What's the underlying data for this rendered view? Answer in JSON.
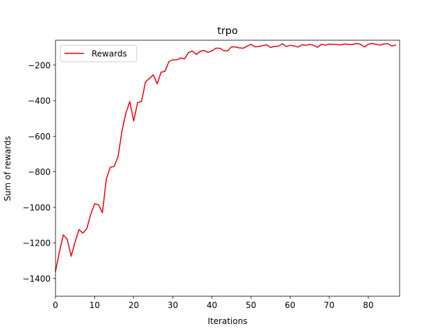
{
  "chart_data": {
    "type": "line",
    "title": "trpo",
    "xlabel": "Iterations",
    "ylabel": "Sum of rewards",
    "xlim": [
      0,
      88
    ],
    "ylim": [
      -1500,
      -60
    ],
    "xticks": [
      0,
      10,
      20,
      30,
      40,
      50,
      60,
      70,
      80
    ],
    "yticks": [
      -1400,
      -1200,
      -1000,
      -800,
      -600,
      -400,
      -200
    ],
    "xtick_labels": [
      "0",
      "10",
      "20",
      "30",
      "40",
      "50",
      "60",
      "70",
      "80"
    ],
    "ytick_labels": [
      "−1400",
      "−1200",
      "−1000",
      "−800",
      "−600",
      "−400",
      "−200"
    ],
    "grid": false,
    "legend": {
      "position": "top-left",
      "entries": [
        "Rewards"
      ]
    },
    "series": [
      {
        "name": "Rewards",
        "color": "#e8000b",
        "x": [
          0,
          1,
          2,
          3,
          4,
          5,
          6,
          7,
          8,
          9,
          10,
          11,
          12,
          13,
          14,
          15,
          16,
          17,
          18,
          19,
          20,
          21,
          22,
          23,
          24,
          25,
          26,
          27,
          28,
          29,
          30,
          31,
          32,
          33,
          34,
          35,
          36,
          37,
          38,
          39,
          40,
          41,
          42,
          43,
          44,
          45,
          46,
          47,
          48,
          49,
          50,
          51,
          52,
          53,
          54,
          55,
          56,
          57,
          58,
          59,
          60,
          61,
          62,
          63,
          64,
          65,
          66,
          67,
          68,
          69,
          70,
          71,
          72,
          73,
          74,
          75,
          76,
          77,
          78,
          79,
          80,
          81,
          82,
          83,
          84,
          85,
          86,
          87
        ],
        "values": [
          -1360,
          -1250,
          -1155,
          -1180,
          -1275,
          -1195,
          -1125,
          -1145,
          -1120,
          -1040,
          -980,
          -985,
          -1030,
          -840,
          -775,
          -770,
          -715,
          -570,
          -470,
          -405,
          -515,
          -410,
          -405,
          -295,
          -275,
          -255,
          -305,
          -240,
          -235,
          -180,
          -170,
          -170,
          -160,
          -165,
          -130,
          -120,
          -140,
          -122,
          -118,
          -128,
          -120,
          -105,
          -105,
          -118,
          -120,
          -98,
          -97,
          -103,
          -105,
          -93,
          -83,
          -97,
          -95,
          -90,
          -86,
          -100,
          -95,
          -93,
          -80,
          -95,
          -88,
          -92,
          -98,
          -86,
          -88,
          -84,
          -88,
          -100,
          -83,
          -88,
          -82,
          -83,
          -85,
          -86,
          -81,
          -84,
          -84,
          -78,
          -83,
          -98,
          -82,
          -78,
          -83,
          -88,
          -80,
          -80,
          -92,
          -88
        ]
      }
    ]
  }
}
